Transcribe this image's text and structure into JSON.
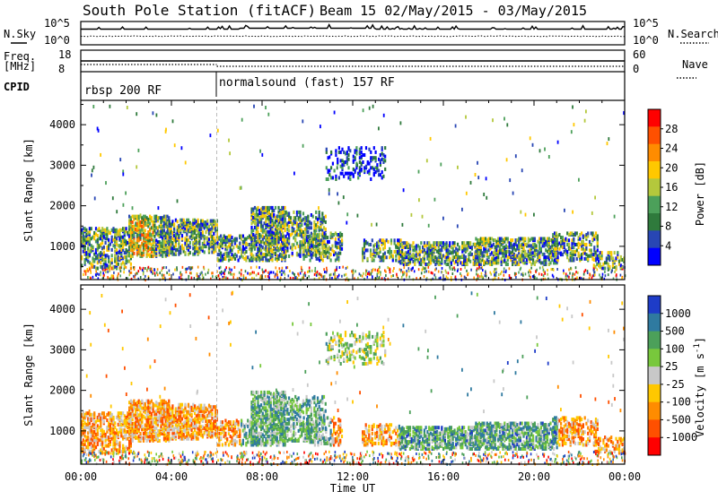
{
  "header": {
    "title": "South Pole Station (fitACF)",
    "beam_label": "Beam 15 02/May/2015 - 03/May/2015"
  },
  "sky_panel": {
    "left_label": "N.Sky",
    "left_ticks": [
      "10^5",
      "10^0"
    ],
    "right_ticks": [
      "10^5",
      "10^0"
    ],
    "right_label": "N.Search"
  },
  "freq_panel": {
    "left_label_line1": "Freq.",
    "left_label_line2": "[MHz]",
    "left_ticks": [
      "18",
      "8"
    ],
    "right_ticks": [
      "60",
      "0"
    ],
    "right_label": "Nave"
  },
  "cpid": {
    "label": "CPID",
    "segments": [
      {
        "start_hour": 0,
        "name": "rbsp 200 RF"
      },
      {
        "start_hour": 6,
        "name": "normalsound (fast) 157 RF"
      }
    ]
  },
  "colors": {
    "power_scale": [
      "#0000ff",
      "#2846b4",
      "#2f7a3c",
      "#4ca05a",
      "#b4c83c",
      "#ffc800",
      "#ff8c00",
      "#ff5000",
      "#ff0000"
    ],
    "velocity_scale": [
      "#1e3cc8",
      "#2f7aa0",
      "#4ca05a",
      "#78c83c",
      "#c8c8c8",
      "#ffc800",
      "#ff8c00",
      "#ff5000",
      "#ff0000"
    ]
  },
  "chart_data": [
    {
      "type": "heatmap",
      "title": "",
      "xlabel": "",
      "ylabel": "Slant Range [km]",
      "x_ticks": [
        "00:00",
        "04:00",
        "08:00",
        "12:00",
        "16:00",
        "20:00",
        "00:00"
      ],
      "y_ticks": [
        1000,
        2000,
        3000,
        4000
      ],
      "ylim": [
        180,
        4600
      ],
      "xlim_hours": [
        0,
        24
      ],
      "colorbar": {
        "label": "Power [dB]",
        "ticks": [
          "4",
          "8",
          "12",
          "16",
          "20",
          "24",
          "28"
        ],
        "range": [
          0,
          30
        ]
      }
    },
    {
      "type": "heatmap",
      "title": "",
      "xlabel": "Time UT",
      "ylabel": "Slant Range [km]",
      "x_ticks": [
        "00:00",
        "04:00",
        "08:00",
        "12:00",
        "16:00",
        "20:00",
        "00:00"
      ],
      "y_ticks": [
        1000,
        2000,
        3000,
        4000
      ],
      "ylim": [
        180,
        4600
      ],
      "xlim_hours": [
        0,
        24
      ],
      "colorbar": {
        "label": "Velocity [m s^-1]",
        "ticks": [
          "1000",
          "500",
          "100",
          "25",
          "-25",
          "-100",
          "-500",
          "-1000"
        ]
      }
    }
  ]
}
